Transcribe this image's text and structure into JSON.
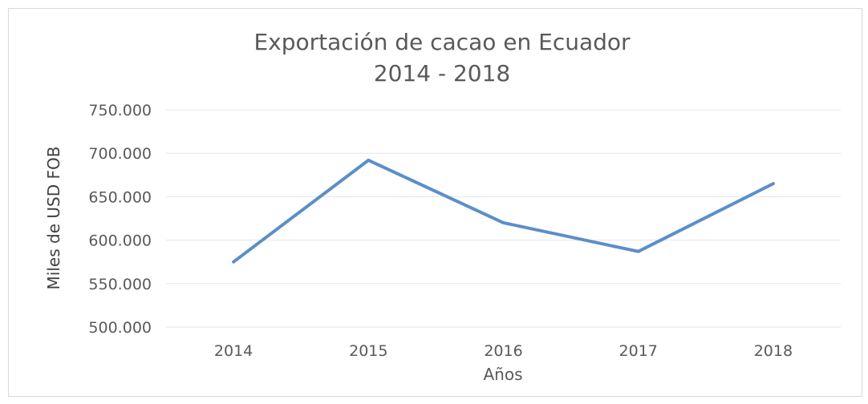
{
  "chart_data": {
    "type": "line",
    "title": "Exportación de cacao en Ecuador",
    "subtitle": "2014 - 2018",
    "xlabel": "Años",
    "ylabel": "Miles de USD FOB",
    "categories": [
      "2014",
      "2015",
      "2016",
      "2017",
      "2018"
    ],
    "series": [
      {
        "values": [
          575000,
          692000,
          620000,
          587000,
          665000
        ]
      }
    ],
    "ylim": [
      500000,
      750000
    ],
    "yticks": [
      500000,
      550000,
      600000,
      650000,
      700000,
      750000
    ],
    "ytick_labels": [
      "500.000",
      "550.000",
      "600.000",
      "650.000",
      "700.000",
      "750.000"
    ],
    "grid": true,
    "legend": "none",
    "line_color": "#5b8fc7",
    "grid_color": "#e6e6e6",
    "text_color": "#595959"
  }
}
